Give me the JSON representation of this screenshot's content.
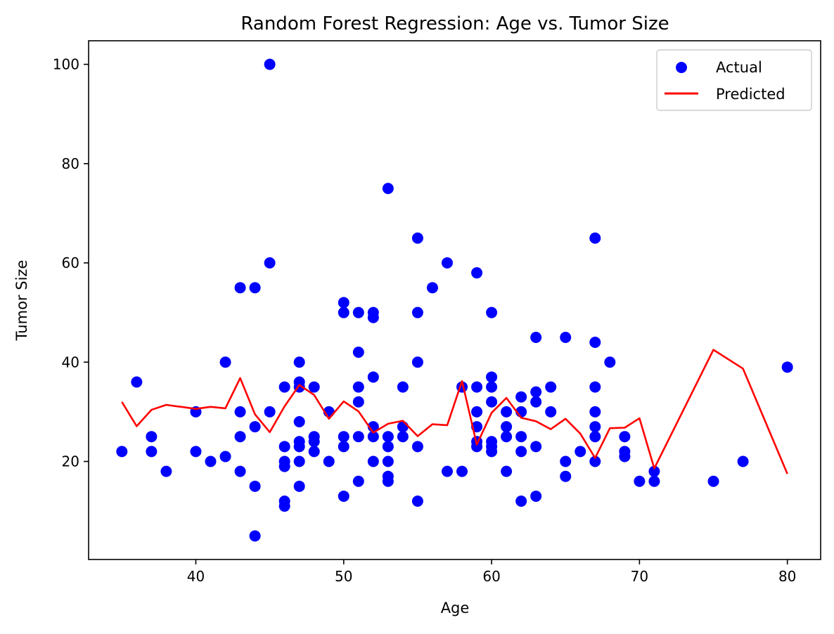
{
  "chart_data": {
    "type": "scatter",
    "title": "Random Forest Regression: Age vs. Tumor Size",
    "xlabel": "Age",
    "ylabel": "Tumor Size",
    "xlim": [
      32.75,
      82.25
    ],
    "ylim": [
      0.25,
      104.75
    ],
    "xticks": [
      40,
      50,
      60,
      70,
      80
    ],
    "yticks": [
      20,
      40,
      60,
      80,
      100
    ],
    "grid": false,
    "legend_position": "top-right",
    "colors": {
      "actual": "#0000ff",
      "predicted": "#ff0000"
    },
    "series": [
      {
        "name": "Actual",
        "kind": "scatter",
        "points": [
          [
            35,
            22
          ],
          [
            36,
            36
          ],
          [
            37,
            25
          ],
          [
            37,
            22
          ],
          [
            38,
            18
          ],
          [
            40,
            30
          ],
          [
            40,
            22
          ],
          [
            41,
            20
          ],
          [
            42,
            40
          ],
          [
            42,
            21
          ],
          [
            43,
            55
          ],
          [
            43,
            30
          ],
          [
            43,
            25
          ],
          [
            43,
            18
          ],
          [
            44,
            55
          ],
          [
            44,
            27
          ],
          [
            44,
            15
          ],
          [
            44,
            5
          ],
          [
            45,
            100
          ],
          [
            45,
            60
          ],
          [
            45,
            30
          ],
          [
            46,
            35
          ],
          [
            46,
            23
          ],
          [
            46,
            20
          ],
          [
            46,
            19
          ],
          [
            46,
            12
          ],
          [
            46,
            11
          ],
          [
            47,
            40
          ],
          [
            47,
            36
          ],
          [
            47,
            35
          ],
          [
            47,
            28
          ],
          [
            47,
            24
          ],
          [
            47,
            23
          ],
          [
            47,
            20
          ],
          [
            47,
            15
          ],
          [
            48,
            35
          ],
          [
            48,
            25
          ],
          [
            48,
            24
          ],
          [
            48,
            22
          ],
          [
            49,
            30
          ],
          [
            49,
            20
          ],
          [
            50,
            52
          ],
          [
            50,
            50
          ],
          [
            50,
            25
          ],
          [
            50,
            23
          ],
          [
            50,
            13
          ],
          [
            51,
            50
          ],
          [
            51,
            42
          ],
          [
            51,
            35
          ],
          [
            51,
            32
          ],
          [
            51,
            25
          ],
          [
            51,
            16
          ],
          [
            52,
            50
          ],
          [
            52,
            49
          ],
          [
            52,
            37
          ],
          [
            52,
            27
          ],
          [
            52,
            25
          ],
          [
            52,
            20
          ],
          [
            53,
            75
          ],
          [
            53,
            25
          ],
          [
            53,
            23
          ],
          [
            53,
            20
          ],
          [
            53,
            17
          ],
          [
            53,
            16
          ],
          [
            54,
            35
          ],
          [
            54,
            27
          ],
          [
            54,
            25
          ],
          [
            55,
            65
          ],
          [
            55,
            50
          ],
          [
            55,
            40
          ],
          [
            55,
            23
          ],
          [
            55,
            12
          ],
          [
            56,
            55
          ],
          [
            57,
            60
          ],
          [
            57,
            18
          ],
          [
            58,
            35
          ],
          [
            58,
            18
          ],
          [
            59,
            58
          ],
          [
            59,
            35
          ],
          [
            59,
            30
          ],
          [
            59,
            27
          ],
          [
            59,
            24
          ],
          [
            59,
            23
          ],
          [
            60,
            50
          ],
          [
            60,
            37
          ],
          [
            60,
            35
          ],
          [
            60,
            32
          ],
          [
            60,
            24
          ],
          [
            60,
            23
          ],
          [
            60,
            22
          ],
          [
            61,
            30
          ],
          [
            61,
            27
          ],
          [
            61,
            25
          ],
          [
            61,
            18
          ],
          [
            62,
            33
          ],
          [
            62,
            30
          ],
          [
            62,
            25
          ],
          [
            62,
            22
          ],
          [
            62,
            12
          ],
          [
            63,
            45
          ],
          [
            63,
            34
          ],
          [
            63,
            32
          ],
          [
            63,
            23
          ],
          [
            63,
            13
          ],
          [
            64,
            35
          ],
          [
            64,
            30
          ],
          [
            65,
            45
          ],
          [
            65,
            20
          ],
          [
            65,
            17
          ],
          [
            66,
            22
          ],
          [
            67,
            65
          ],
          [
            67,
            44
          ],
          [
            67,
            35
          ],
          [
            67,
            30
          ],
          [
            67,
            27
          ],
          [
            67,
            25
          ],
          [
            67,
            20
          ],
          [
            68,
            40
          ],
          [
            69,
            25
          ],
          [
            69,
            22
          ],
          [
            69,
            21
          ],
          [
            70,
            16
          ],
          [
            71,
            18
          ],
          [
            71,
            16
          ],
          [
            75,
            16
          ],
          [
            77,
            20
          ],
          [
            80,
            39
          ]
        ]
      },
      {
        "name": "Predicted",
        "kind": "line",
        "x": [
          35,
          36,
          37,
          38,
          40,
          41,
          42,
          43,
          44,
          45,
          46,
          47,
          48,
          49,
          50,
          51,
          52,
          53,
          54,
          55,
          56,
          57,
          58,
          59,
          60,
          61,
          62,
          63,
          64,
          65,
          66,
          67,
          68,
          69,
          70,
          71,
          75,
          77,
          80
        ],
        "y": [
          32,
          27.1,
          30.4,
          31.4,
          30.6,
          31,
          30.7,
          36.8,
          29.5,
          25.9,
          31.1,
          35.4,
          33.4,
          28.6,
          32.1,
          30.1,
          25.8,
          27.6,
          28.2,
          25.1,
          27.5,
          27.3,
          36.2,
          23.4,
          29.8,
          32.8,
          28.8,
          28.1,
          26.5,
          28.6,
          25.6,
          20.7,
          26.7,
          26.8,
          28.7,
          18.6,
          42.5,
          38.7,
          17.5
        ]
      }
    ]
  }
}
